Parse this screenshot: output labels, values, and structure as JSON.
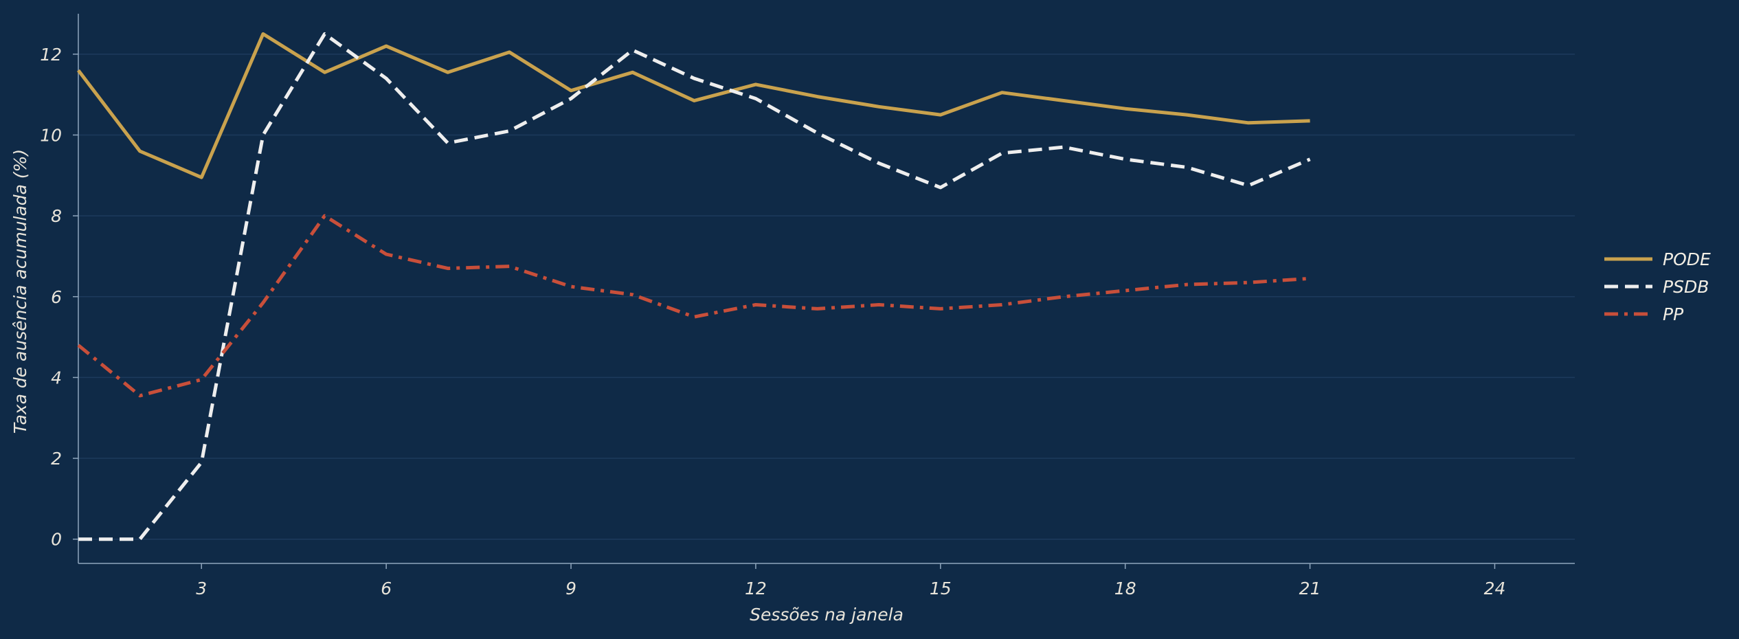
{
  "chart_data": {
    "type": "line",
    "title": "",
    "xlabel": "Sessões na janela",
    "ylabel": "Taxa de ausência acumulada (%)",
    "xlim": [
      1,
      25.3
    ],
    "ylim": [
      -0.6,
      13
    ],
    "xticks": [
      3,
      6,
      9,
      12,
      15,
      18,
      21,
      24
    ],
    "yticks": [
      0,
      2,
      4,
      6,
      8,
      10,
      12
    ],
    "grid": "horizontal",
    "legend_position": "right",
    "series": [
      {
        "name": "PODE",
        "color": "#c9a24e",
        "dash": "solid",
        "x": [
          1,
          2,
          3,
          4,
          5,
          6,
          7,
          8,
          9,
          10,
          11,
          12,
          13,
          14,
          15,
          16,
          17,
          18,
          19,
          20,
          21
        ],
        "values": [
          11.6,
          9.6,
          8.95,
          12.5,
          11.55,
          12.2,
          11.55,
          12.05,
          11.1,
          11.55,
          10.85,
          11.25,
          10.95,
          10.7,
          10.5,
          11.05,
          10.85,
          10.65,
          10.5,
          10.3,
          10.35
        ]
      },
      {
        "name": "PSDB",
        "color": "#eeeeee",
        "dash": "dashed",
        "x": [
          1,
          2,
          3,
          4,
          5,
          6,
          7,
          8,
          9,
          10,
          11,
          12,
          13,
          14,
          15,
          16,
          17,
          18,
          19,
          20,
          21
        ],
        "values": [
          0,
          0,
          1.9,
          10.0,
          12.5,
          11.4,
          9.8,
          10.1,
          10.9,
          12.1,
          11.4,
          10.9,
          10.05,
          9.3,
          8.7,
          9.55,
          9.7,
          9.4,
          9.2,
          8.75,
          9.4
        ]
      },
      {
        "name": "PP",
        "color": "#c84f3a",
        "dash": "dashdot",
        "x": [
          1,
          2,
          3,
          4,
          5,
          6,
          7,
          8,
          9,
          10,
          11,
          12,
          13,
          14,
          15,
          16,
          17,
          18,
          19,
          20,
          21
        ],
        "values": [
          4.8,
          3.55,
          3.95,
          5.85,
          8.0,
          7.05,
          6.7,
          6.75,
          6.25,
          6.05,
          5.5,
          5.8,
          5.7,
          5.8,
          5.7,
          5.8,
          6.0,
          6.15,
          6.3,
          6.35,
          6.45
        ]
      }
    ]
  }
}
